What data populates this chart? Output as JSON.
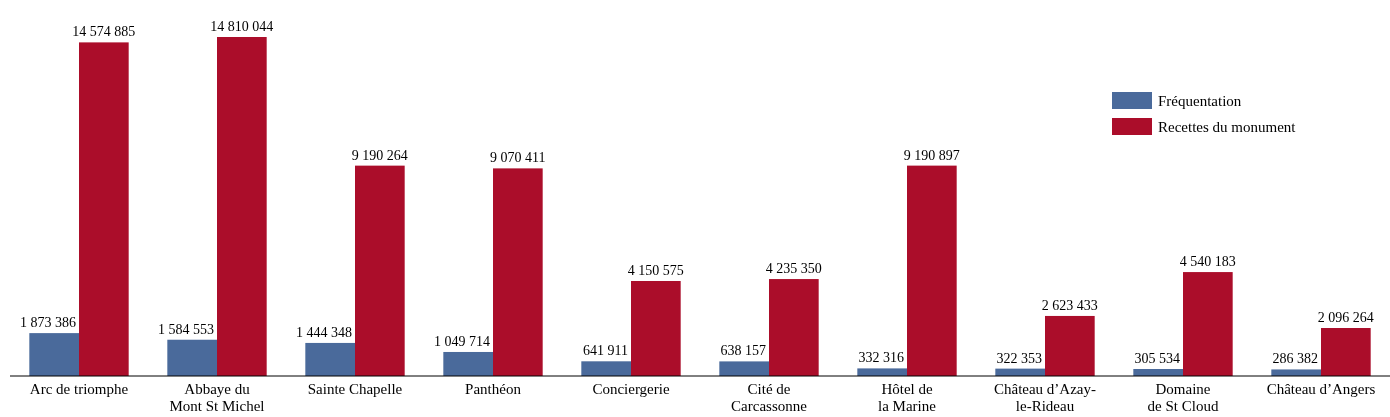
{
  "chart_data": {
    "type": "bar",
    "categories": [
      "Arc de triomphe",
      "Abbaye du\nMont St Michel",
      "Sainte Chapelle",
      "Panthéon",
      "Conciergerie",
      "Cité de\nCarcassonne",
      "Hôtel de\nla Marine",
      "Château d’Azay-\nle-Rideau",
      "Domaine\nde St Cloud",
      "Château d’Angers"
    ],
    "series": [
      {
        "name": "Fréquentation",
        "color": "#4a6a9b",
        "values": [
          1873386,
          1584553,
          1444348,
          1049714,
          641911,
          638157,
          332316,
          322353,
          305534,
          286382
        ],
        "value_labels": [
          "1 873 386",
          "1 584 553",
          "1 444 348",
          "1 049 714",
          "641 911",
          "638 157",
          "332 316",
          "322 353",
          "305 534",
          "286 382"
        ]
      },
      {
        "name": "Recettes du monument",
        "color": "#ab0d2a",
        "values": [
          14574885,
          14810044,
          9190264,
          9070411,
          4150575,
          4235350,
          9190897,
          2623433,
          4540183,
          2096264
        ],
        "value_labels": [
          "14 574 885",
          "14 810 044",
          "9 190 264",
          "9 070 411",
          "4 150 575",
          "4 235 350",
          "9 190 897",
          "2 623 433",
          "4 540 183",
          "2 096 264"
        ]
      }
    ],
    "legend": "top right"
  }
}
